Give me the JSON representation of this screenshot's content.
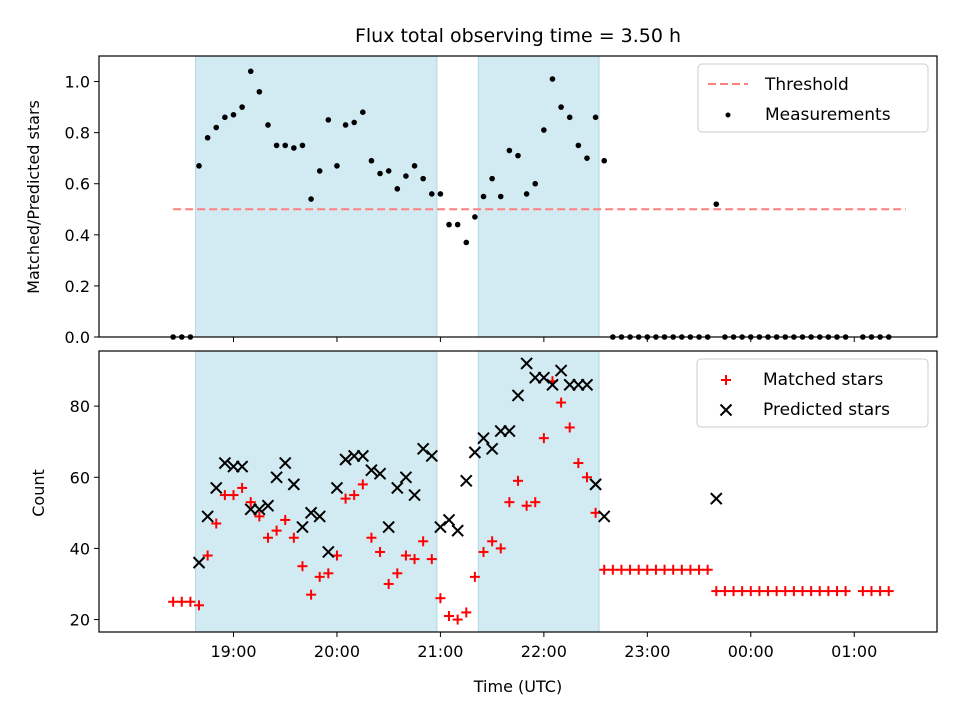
{
  "chart_data": [
    {
      "type": "scatter",
      "title": "Flux total observing time = 3.50 h",
      "xlabel": "",
      "ylabel": "Matched/Predicted stars",
      "ylim": [
        0,
        1.1
      ],
      "yticks": [
        "0.0",
        "0.2",
        "0.4",
        "0.6",
        "0.8",
        "1.0"
      ],
      "xlim_hours": [
        17.7,
        25.8
      ],
      "grid": false,
      "legend_position": "top-right",
      "colors": {
        "threshold": "#ff7f7f",
        "measurements": "#000000",
        "shade": "#add8e6"
      },
      "legend": {
        "threshold": "Threshold",
        "measurements": "Measurements"
      },
      "threshold": {
        "value": 0.5,
        "x_start": "18:25",
        "x_end": "25:30"
      },
      "shaded_intervals": [
        [
          "18:38",
          "20:58"
        ],
        [
          "21:22",
          "22:32"
        ]
      ],
      "x": [
        "18:25",
        "18:30",
        "18:35",
        "18:40",
        "18:45",
        "18:50",
        "18:55",
        "19:00",
        "19:05",
        "19:10",
        "19:15",
        "19:20",
        "19:25",
        "19:30",
        "19:35",
        "19:40",
        "19:45",
        "19:50",
        "19:55",
        "20:00",
        "20:05",
        "20:10",
        "20:15",
        "20:20",
        "20:25",
        "20:30",
        "20:35",
        "20:40",
        "20:45",
        "20:50",
        "20:55",
        "21:00",
        "21:05",
        "21:10",
        "21:15",
        "21:20",
        "21:25",
        "21:30",
        "21:35",
        "21:40",
        "21:45",
        "21:50",
        "21:55",
        "22:00",
        "22:05",
        "22:10",
        "22:15",
        "22:20",
        "22:25",
        "22:30",
        "22:35",
        "22:40",
        "22:45",
        "22:50",
        "22:55",
        "23:00",
        "23:05",
        "23:10",
        "23:15",
        "23:20",
        "23:25",
        "23:30",
        "23:35",
        "23:40",
        "23:45",
        "23:50",
        "23:55",
        "24:00",
        "24:05",
        "24:10",
        "24:15",
        "24:20",
        "24:25",
        "24:30",
        "24:35",
        "24:40",
        "24:45",
        "24:50",
        "24:55",
        "25:05",
        "25:10",
        "25:15",
        "25:20"
      ],
      "values": [
        0,
        0,
        0,
        0.67,
        0.78,
        0.82,
        0.86,
        0.87,
        0.9,
        1.04,
        0.96,
        0.83,
        0.75,
        0.75,
        0.74,
        0.75,
        0.54,
        0.65,
        0.85,
        0.67,
        0.83,
        0.84,
        0.88,
        0.69,
        0.64,
        0.65,
        0.58,
        0.63,
        0.67,
        0.62,
        0.56,
        0.56,
        0.44,
        0.44,
        0.37,
        0.47,
        0.55,
        0.62,
        0.55,
        0.73,
        0.71,
        0.56,
        0.6,
        0.81,
        1.01,
        0.9,
        0.86,
        0.75,
        0.7,
        0.86,
        0.69,
        0,
        0,
        0,
        0,
        0,
        0,
        0,
        0,
        0,
        0,
        0,
        0,
        0.52,
        0,
        0,
        0,
        0,
        0,
        0,
        0,
        0,
        0,
        0,
        0,
        0,
        0,
        0,
        0,
        0,
        0,
        0,
        0
      ]
    },
    {
      "type": "scatter",
      "title": "",
      "xlabel": "Time (UTC)",
      "ylabel": "Count",
      "ylim": [
        16.5,
        95.5
      ],
      "yticks": [
        "20",
        "40",
        "60",
        "80"
      ],
      "xticks": [
        "19:00",
        "20:00",
        "21:00",
        "22:00",
        "23:00",
        "00:00",
        "01:00"
      ],
      "xlim_hours": [
        17.7,
        25.8
      ],
      "grid": false,
      "legend_position": "top-right",
      "colors": {
        "matched": "#ff0000",
        "predicted": "#000000",
        "shade": "#add8e6"
      },
      "legend": {
        "matched": "Matched stars",
        "predicted": "Predicted stars"
      },
      "shaded_intervals": [
        [
          "18:38",
          "20:58"
        ],
        [
          "21:22",
          "22:32"
        ]
      ],
      "series": [
        {
          "name": "Matched stars",
          "x": [
            "18:25",
            "18:30",
            "18:35",
            "18:40",
            "18:45",
            "18:50",
            "18:55",
            "19:00",
            "19:05",
            "19:10",
            "19:15",
            "19:20",
            "19:25",
            "19:30",
            "19:35",
            "19:40",
            "19:45",
            "19:50",
            "19:55",
            "20:00",
            "20:05",
            "20:10",
            "20:15",
            "20:20",
            "20:25",
            "20:30",
            "20:35",
            "20:40",
            "20:45",
            "20:50",
            "20:55",
            "21:00",
            "21:05",
            "21:10",
            "21:15",
            "21:20",
            "21:25",
            "21:30",
            "21:35",
            "21:40",
            "21:45",
            "21:50",
            "21:55",
            "22:00",
            "22:05",
            "22:10",
            "22:15",
            "22:20",
            "22:25",
            "22:30",
            "22:35",
            "22:40",
            "22:45",
            "22:50",
            "22:55",
            "23:00",
            "23:05",
            "23:10",
            "23:15",
            "23:20",
            "23:25",
            "23:30",
            "23:35",
            "23:40",
            "23:45",
            "23:50",
            "23:55",
            "24:00",
            "24:05",
            "24:10",
            "24:15",
            "24:20",
            "24:25",
            "24:30",
            "24:35",
            "24:40",
            "24:45",
            "24:50",
            "24:55",
            "25:05",
            "25:10",
            "25:15",
            "25:20"
          ],
          "values": [
            25,
            25,
            25,
            24,
            38,
            47,
            55,
            55,
            57,
            53,
            49,
            43,
            45,
            48,
            43,
            35,
            27,
            32,
            33,
            38,
            54,
            55,
            58,
            43,
            39,
            30,
            33,
            38,
            37,
            42,
            37,
            26,
            21,
            20,
            22,
            32,
            39,
            42,
            40,
            53,
            59,
            52,
            53,
            71,
            87,
            81,
            74,
            64,
            60,
            50,
            34,
            34,
            34,
            34,
            34,
            34,
            34,
            34,
            34,
            34,
            34,
            34,
            34,
            28,
            28,
            28,
            28,
            28,
            28,
            28,
            28,
            28,
            28,
            28,
            28,
            28,
            28,
            28,
            28,
            28,
            28,
            28,
            28
          ]
        },
        {
          "name": "Predicted stars",
          "x": [
            "18:40",
            "18:45",
            "18:50",
            "18:55",
            "19:00",
            "19:05",
            "19:10",
            "19:15",
            "19:20",
            "19:25",
            "19:30",
            "19:35",
            "19:40",
            "19:45",
            "19:50",
            "19:55",
            "20:00",
            "20:05",
            "20:10",
            "20:15",
            "20:20",
            "20:25",
            "20:30",
            "20:35",
            "20:40",
            "20:45",
            "20:50",
            "20:55",
            "21:00",
            "21:05",
            "21:10",
            "21:15",
            "21:20",
            "21:25",
            "21:30",
            "21:35",
            "21:40",
            "21:45",
            "21:50",
            "21:55",
            "22:00",
            "22:05",
            "22:10",
            "22:15",
            "22:20",
            "22:25",
            "22:30",
            "22:35",
            "23:40"
          ],
          "values": [
            36,
            49,
            57,
            64,
            63,
            63,
            51,
            51,
            52,
            60,
            64,
            58,
            46,
            50,
            49,
            39,
            57,
            65,
            66,
            66,
            62,
            61,
            46,
            57,
            60,
            55,
            68,
            66,
            46,
            48,
            45,
            59,
            67,
            71,
            68,
            73,
            73,
            83,
            92,
            88,
            88,
            86,
            90,
            86,
            86,
            86,
            58,
            49,
            54
          ]
        }
      ]
    }
  ]
}
